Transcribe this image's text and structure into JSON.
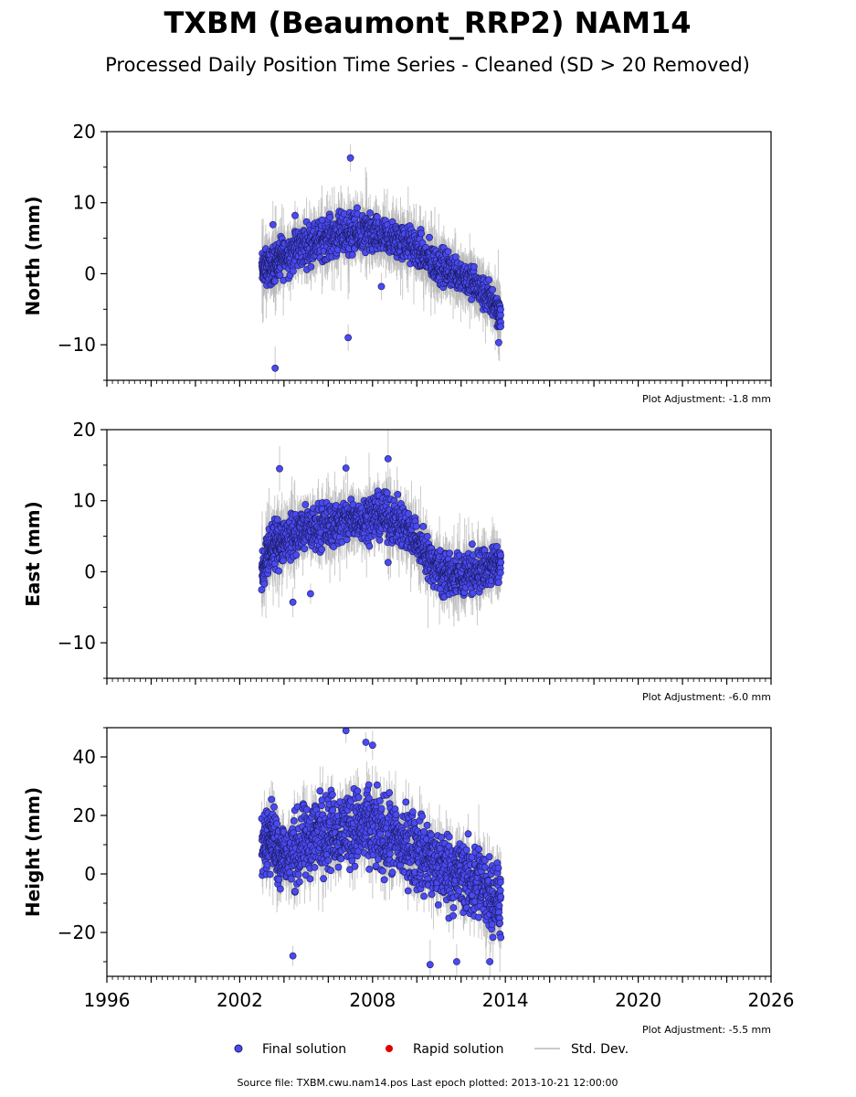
{
  "header": {
    "title": "TXBM (Beaumont_RRP2) NAM14",
    "subtitle": "Processed Daily Position Time Series - Cleaned (SD > 20 Removed)"
  },
  "legend": {
    "final": "Final solution",
    "rapid": "Rapid solution",
    "std": "Std. Dev."
  },
  "footer": {
    "source": "Source file: TXBM.cwu.nam14.pos  Last epoch plotted: 2013-10-21 12:00:00"
  },
  "colors": {
    "final": "#4a4af0",
    "rapid": "#e00000",
    "std": "#b8b8b8"
  },
  "chart_data": [
    {
      "type": "scatter",
      "ylabel": "North (mm)",
      "xlim": [
        1996,
        2026
      ],
      "ylim": [
        -15,
        20
      ],
      "yticks": [
        -10,
        0,
        10,
        20
      ],
      "xticks": [
        1996,
        2002,
        2008,
        2014,
        2020,
        2026
      ],
      "adjustment": "Plot Adjustment: -1.8 mm",
      "series": [
        {
          "x": [
            2003.0,
            2003.2,
            2003.4,
            2003.6,
            2003.8,
            2004.0,
            2004.3,
            2004.6,
            2004.9,
            2005.2,
            2005.5,
            2005.8,
            2006.1,
            2006.4,
            2006.7,
            2007.0,
            2007.3,
            2007.6,
            2007.9,
            2008.2,
            2008.5,
            2008.8,
            2009.1,
            2009.4,
            2009.7,
            2010.0,
            2010.3,
            2010.6,
            2010.9,
            2011.2,
            2011.5,
            2011.8,
            2012.1,
            2012.4,
            2012.7,
            2013.0,
            2013.3,
            2013.6,
            2013.8
          ],
          "y": [
            0.5,
            1.0,
            0.8,
            1.6,
            2.0,
            2.4,
            3.0,
            3.5,
            4.0,
            4.3,
            4.6,
            4.9,
            5.2,
            5.5,
            5.6,
            5.6,
            5.7,
            5.6,
            5.4,
            5.2,
            5.0,
            4.8,
            4.6,
            4.4,
            4.0,
            3.4,
            2.6,
            1.8,
            1.2,
            0.8,
            0.5,
            0.2,
            -0.3,
            -1.0,
            -1.8,
            -2.8,
            -3.5,
            -4.5,
            -6.5
          ],
          "spread": [
            2.0,
            2.0,
            2.0,
            2.2,
            2.2,
            2.4,
            2.4,
            2.4,
            2.4,
            2.4,
            2.4,
            2.4,
            2.4,
            2.4,
            2.4,
            2.4,
            2.4,
            2.4,
            2.4,
            2.2,
            2.2,
            2.2,
            2.2,
            2.2,
            2.2,
            2.2,
            2.2,
            2.2,
            2.2,
            2.2,
            2.0,
            2.0,
            2.0,
            2.0,
            2.0,
            2.0,
            2.0,
            2.0,
            1.8
          ],
          "outliers": [
            [
              2003.6,
              -13.3
            ],
            [
              2006.9,
              -9.0
            ],
            [
              2007.0,
              16.3
            ],
            [
              2008.4,
              -1.8
            ],
            [
              2003.5,
              6.9
            ],
            [
              2004.5,
              8.2
            ],
            [
              2013.7,
              -9.7
            ]
          ]
        }
      ]
    },
    {
      "type": "scatter",
      "ylabel": "East (mm)",
      "xlim": [
        1996,
        2026
      ],
      "ylim": [
        -15,
        20
      ],
      "yticks": [
        -10,
        0,
        10,
        20
      ],
      "xticks": [
        1996,
        2002,
        2008,
        2014,
        2020,
        2026
      ],
      "adjustment": "Plot Adjustment: -6.0 mm",
      "series": [
        {
          "x": [
            2003.0,
            2003.2,
            2003.4,
            2003.6,
            2003.8,
            2004.0,
            2004.3,
            2004.6,
            2004.9,
            2005.2,
            2005.5,
            2005.8,
            2006.1,
            2006.4,
            2006.7,
            2007.0,
            2007.3,
            2007.6,
            2007.9,
            2008.2,
            2008.5,
            2008.8,
            2009.1,
            2009.4,
            2009.7,
            2010.0,
            2010.3,
            2010.6,
            2010.9,
            2011.2,
            2011.5,
            2011.8,
            2012.1,
            2012.4,
            2012.7,
            2013.0,
            2013.3,
            2013.6,
            2013.8
          ],
          "y": [
            0.0,
            2.0,
            3.0,
            3.8,
            4.2,
            4.6,
            5.0,
            5.4,
            5.8,
            6.0,
            6.2,
            6.4,
            6.6,
            6.8,
            7.0,
            7.2,
            7.4,
            7.6,
            7.8,
            8.0,
            7.8,
            7.4,
            7.0,
            6.4,
            5.6,
            4.4,
            3.0,
            1.6,
            0.6,
            0.0,
            -0.4,
            -0.6,
            -0.5,
            -0.2,
            0.0,
            0.3,
            0.6,
            0.8,
            1.0
          ],
          "spread": [
            2.0,
            2.4,
            2.6,
            2.6,
            2.6,
            2.6,
            2.6,
            2.6,
            2.6,
            2.6,
            2.6,
            2.6,
            2.6,
            2.6,
            2.6,
            2.6,
            2.6,
            2.6,
            2.6,
            2.6,
            2.6,
            2.6,
            2.6,
            2.6,
            2.6,
            2.6,
            2.6,
            2.6,
            2.6,
            2.6,
            2.6,
            2.6,
            2.6,
            2.6,
            2.6,
            2.6,
            2.6,
            2.6,
            2.4
          ],
          "outliers": [
            [
              2003.8,
              14.5
            ],
            [
              2004.4,
              -4.3
            ],
            [
              2005.2,
              -3.1
            ],
            [
              2008.7,
              15.9
            ],
            [
              2008.7,
              1.3
            ],
            [
              2006.8,
              14.6
            ]
          ]
        }
      ]
    },
    {
      "type": "scatter",
      "ylabel": "Height (mm)",
      "xlim": [
        1996,
        2026
      ],
      "ylim": [
        -35,
        50
      ],
      "yticks": [
        -20,
        0,
        20,
        40
      ],
      "xticks": [
        1996,
        2002,
        2008,
        2014,
        2020,
        2026
      ],
      "adjustment": "Plot Adjustment: -5.5 mm",
      "series": [
        {
          "x": [
            2003.0,
            2003.2,
            2003.4,
            2003.6,
            2003.8,
            2004.0,
            2004.3,
            2004.6,
            2004.9,
            2005.2,
            2005.5,
            2005.8,
            2006.1,
            2006.4,
            2006.7,
            2007.0,
            2007.3,
            2007.6,
            2007.9,
            2008.2,
            2008.5,
            2008.8,
            2009.1,
            2009.4,
            2009.7,
            2010.0,
            2010.3,
            2010.6,
            2010.9,
            2011.2,
            2011.5,
            2011.8,
            2012.1,
            2012.4,
            2012.7,
            2013.0,
            2013.3,
            2013.6,
            2013.8
          ],
          "y": [
            8,
            12,
            14,
            10,
            8,
            6,
            6,
            8,
            10,
            12,
            14,
            15,
            15,
            15,
            16,
            16,
            16,
            16,
            15,
            14,
            13,
            12,
            11,
            10,
            9,
            8,
            6,
            4,
            3,
            2,
            1,
            0,
            -1,
            -2,
            -3,
            -5,
            -6,
            -8,
            -10
          ],
          "spread": [
            9,
            9,
            9,
            9,
            10,
            10,
            10,
            11,
            11,
            11,
            11,
            11,
            11,
            11,
            11,
            11,
            11,
            11,
            11,
            11,
            11,
            11,
            11,
            11,
            11,
            11,
            11,
            11,
            11,
            11,
            11,
            11,
            11,
            11,
            11,
            11,
            11,
            10,
            10
          ],
          "outliers": [
            [
              2006.8,
              49
            ],
            [
              2004.4,
              -28
            ],
            [
              2010.6,
              -31
            ],
            [
              2011.8,
              -30
            ],
            [
              2013.3,
              -30
            ],
            [
              2007.7,
              45
            ],
            [
              2008.0,
              44
            ]
          ]
        }
      ]
    }
  ]
}
